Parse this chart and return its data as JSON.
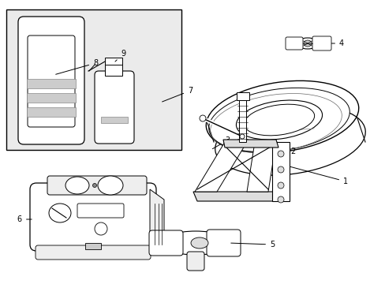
{
  "bg_color": "#ffffff",
  "line_color": "#000000",
  "figsize": [
    4.89,
    3.6
  ],
  "dpi": 100,
  "box_bg": "#ebebeb",
  "label_fs": 7
}
